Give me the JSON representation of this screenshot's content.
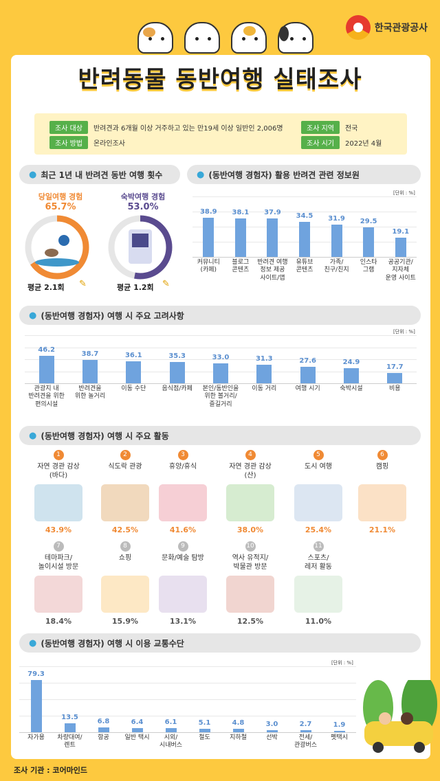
{
  "header": {
    "title": "반려동물 동반여행 실태조사",
    "logo_text": "한국관광공사"
  },
  "info": {
    "target_tag": "조사 대상",
    "target": "반려견과 6개월 이상 거주하고 있는 만19세 이상 일반인 2,006명",
    "method_tag": "조사 방법",
    "method": "온라인조사",
    "region_tag": "조사 지역",
    "region": "전국",
    "period_tag": "조사 시기",
    "period": "2022년 4월"
  },
  "trips": {
    "heading": "최근 1년 내 반려견 동반 여행 횟수",
    "day_label": "당일여행 경험",
    "day_pct": "65.7%",
    "day_value": 65.7,
    "day_avg": "평균 2.1회",
    "stay_label": "숙박여행 경험",
    "stay_pct": "53.0%",
    "stay_value": 53.0,
    "stay_avg": "평균 1.2회"
  },
  "sources": {
    "heading": "(동반여행 경험자) 활용 반려견 관련 정보원",
    "unit": "[단위 : %]"
  },
  "factors": {
    "heading": "(동반여행 경험자) 여행 시 주요 고려사항",
    "unit": "[단위 : %]"
  },
  "activities": {
    "heading": "(동반여행 경험자) 여행 시 주요 활동",
    "items": [
      {
        "rank": "1",
        "name": "자연 경관 감상\n(바다)",
        "pct": "43.9%"
      },
      {
        "rank": "2",
        "name": "식도락 관광",
        "pct": "42.5%"
      },
      {
        "rank": "3",
        "name": "휴양/휴식",
        "pct": "41.6%"
      },
      {
        "rank": "4",
        "name": "자연 경관 감상\n(산)",
        "pct": "38.0%"
      },
      {
        "rank": "5",
        "name": "도시 여행",
        "pct": "25.4%"
      },
      {
        "rank": "6",
        "name": "캠핑",
        "pct": "21.1%"
      },
      {
        "rank": "7",
        "name": "테마파크/\n놀이시설 방문",
        "pct": "18.4%"
      },
      {
        "rank": "8",
        "name": "쇼핑",
        "pct": "15.9%"
      },
      {
        "rank": "9",
        "name": "문화/예술 탐방",
        "pct": "13.1%"
      },
      {
        "rank": "10",
        "name": "역사 유적지/\n박물관 방문",
        "pct": "12.5%"
      },
      {
        "rank": "11",
        "name": "스포츠/\n레저 활동",
        "pct": "11.0%"
      }
    ]
  },
  "transport": {
    "heading": "(동반여행 경험자) 여행 시 이용 교통수단",
    "unit": "[단위 : %]"
  },
  "footer": "조사 기관 : 코어마인드",
  "colors": {
    "bar": "#6fa3de",
    "accent_orange": "#f08a34",
    "accent_purple": "#5a4b8f",
    "brand_yellow": "#fdc93f",
    "tag_green": "#56b04a"
  },
  "chart_data": [
    {
      "type": "bar",
      "title": "(동반여행 경험자) 활용 반려견 관련 정보원",
      "categories": [
        "커뮤니티\n(카페)",
        "블로그\n콘텐츠",
        "반려견 여행\n정보 제공\n사이트/앱",
        "유튜브\n콘텐츠",
        "가족/\n친구/친지",
        "인스타\n그램",
        "공공기관/\n지자체\n운영 사이트"
      ],
      "values": [
        38.9,
        38.1,
        37.9,
        34.5,
        31.9,
        29.5,
        19.1
      ],
      "ylim": [
        0,
        60
      ],
      "grid": true
    },
    {
      "type": "bar",
      "title": "(동반여행 경험자) 여행 시 주요 고려사항",
      "categories": [
        "관광지 내\n반려견을 위한\n편의시설",
        "반려견을\n위한 놀거리",
        "이동 수단",
        "음식점/카페",
        "본인/동반인을\n위한 볼거리/\n즐길거리",
        "이동 거리",
        "여행 시기",
        "숙박시설",
        "비용"
      ],
      "values": [
        46.2,
        38.7,
        36.1,
        35.3,
        33.0,
        31.3,
        27.6,
        24.9,
        17.7
      ],
      "ylim": [
        0,
        80
      ],
      "grid": true
    },
    {
      "type": "bar",
      "title": "(동반여행 경험자) 여행 시 이용 교통수단",
      "categories": [
        "자가용",
        "차량대여/\n렌트",
        "항공",
        "일반 택시",
        "시외/\n시내버스",
        "철도",
        "지하철",
        "선박",
        "전세/\n관광버스",
        "펫택시"
      ],
      "values": [
        79.3,
        13.5,
        6.8,
        6.4,
        6.1,
        5.1,
        4.8,
        3.0,
        2.7,
        1.9
      ],
      "ylim": [
        0,
        100
      ],
      "grid": true
    }
  ]
}
